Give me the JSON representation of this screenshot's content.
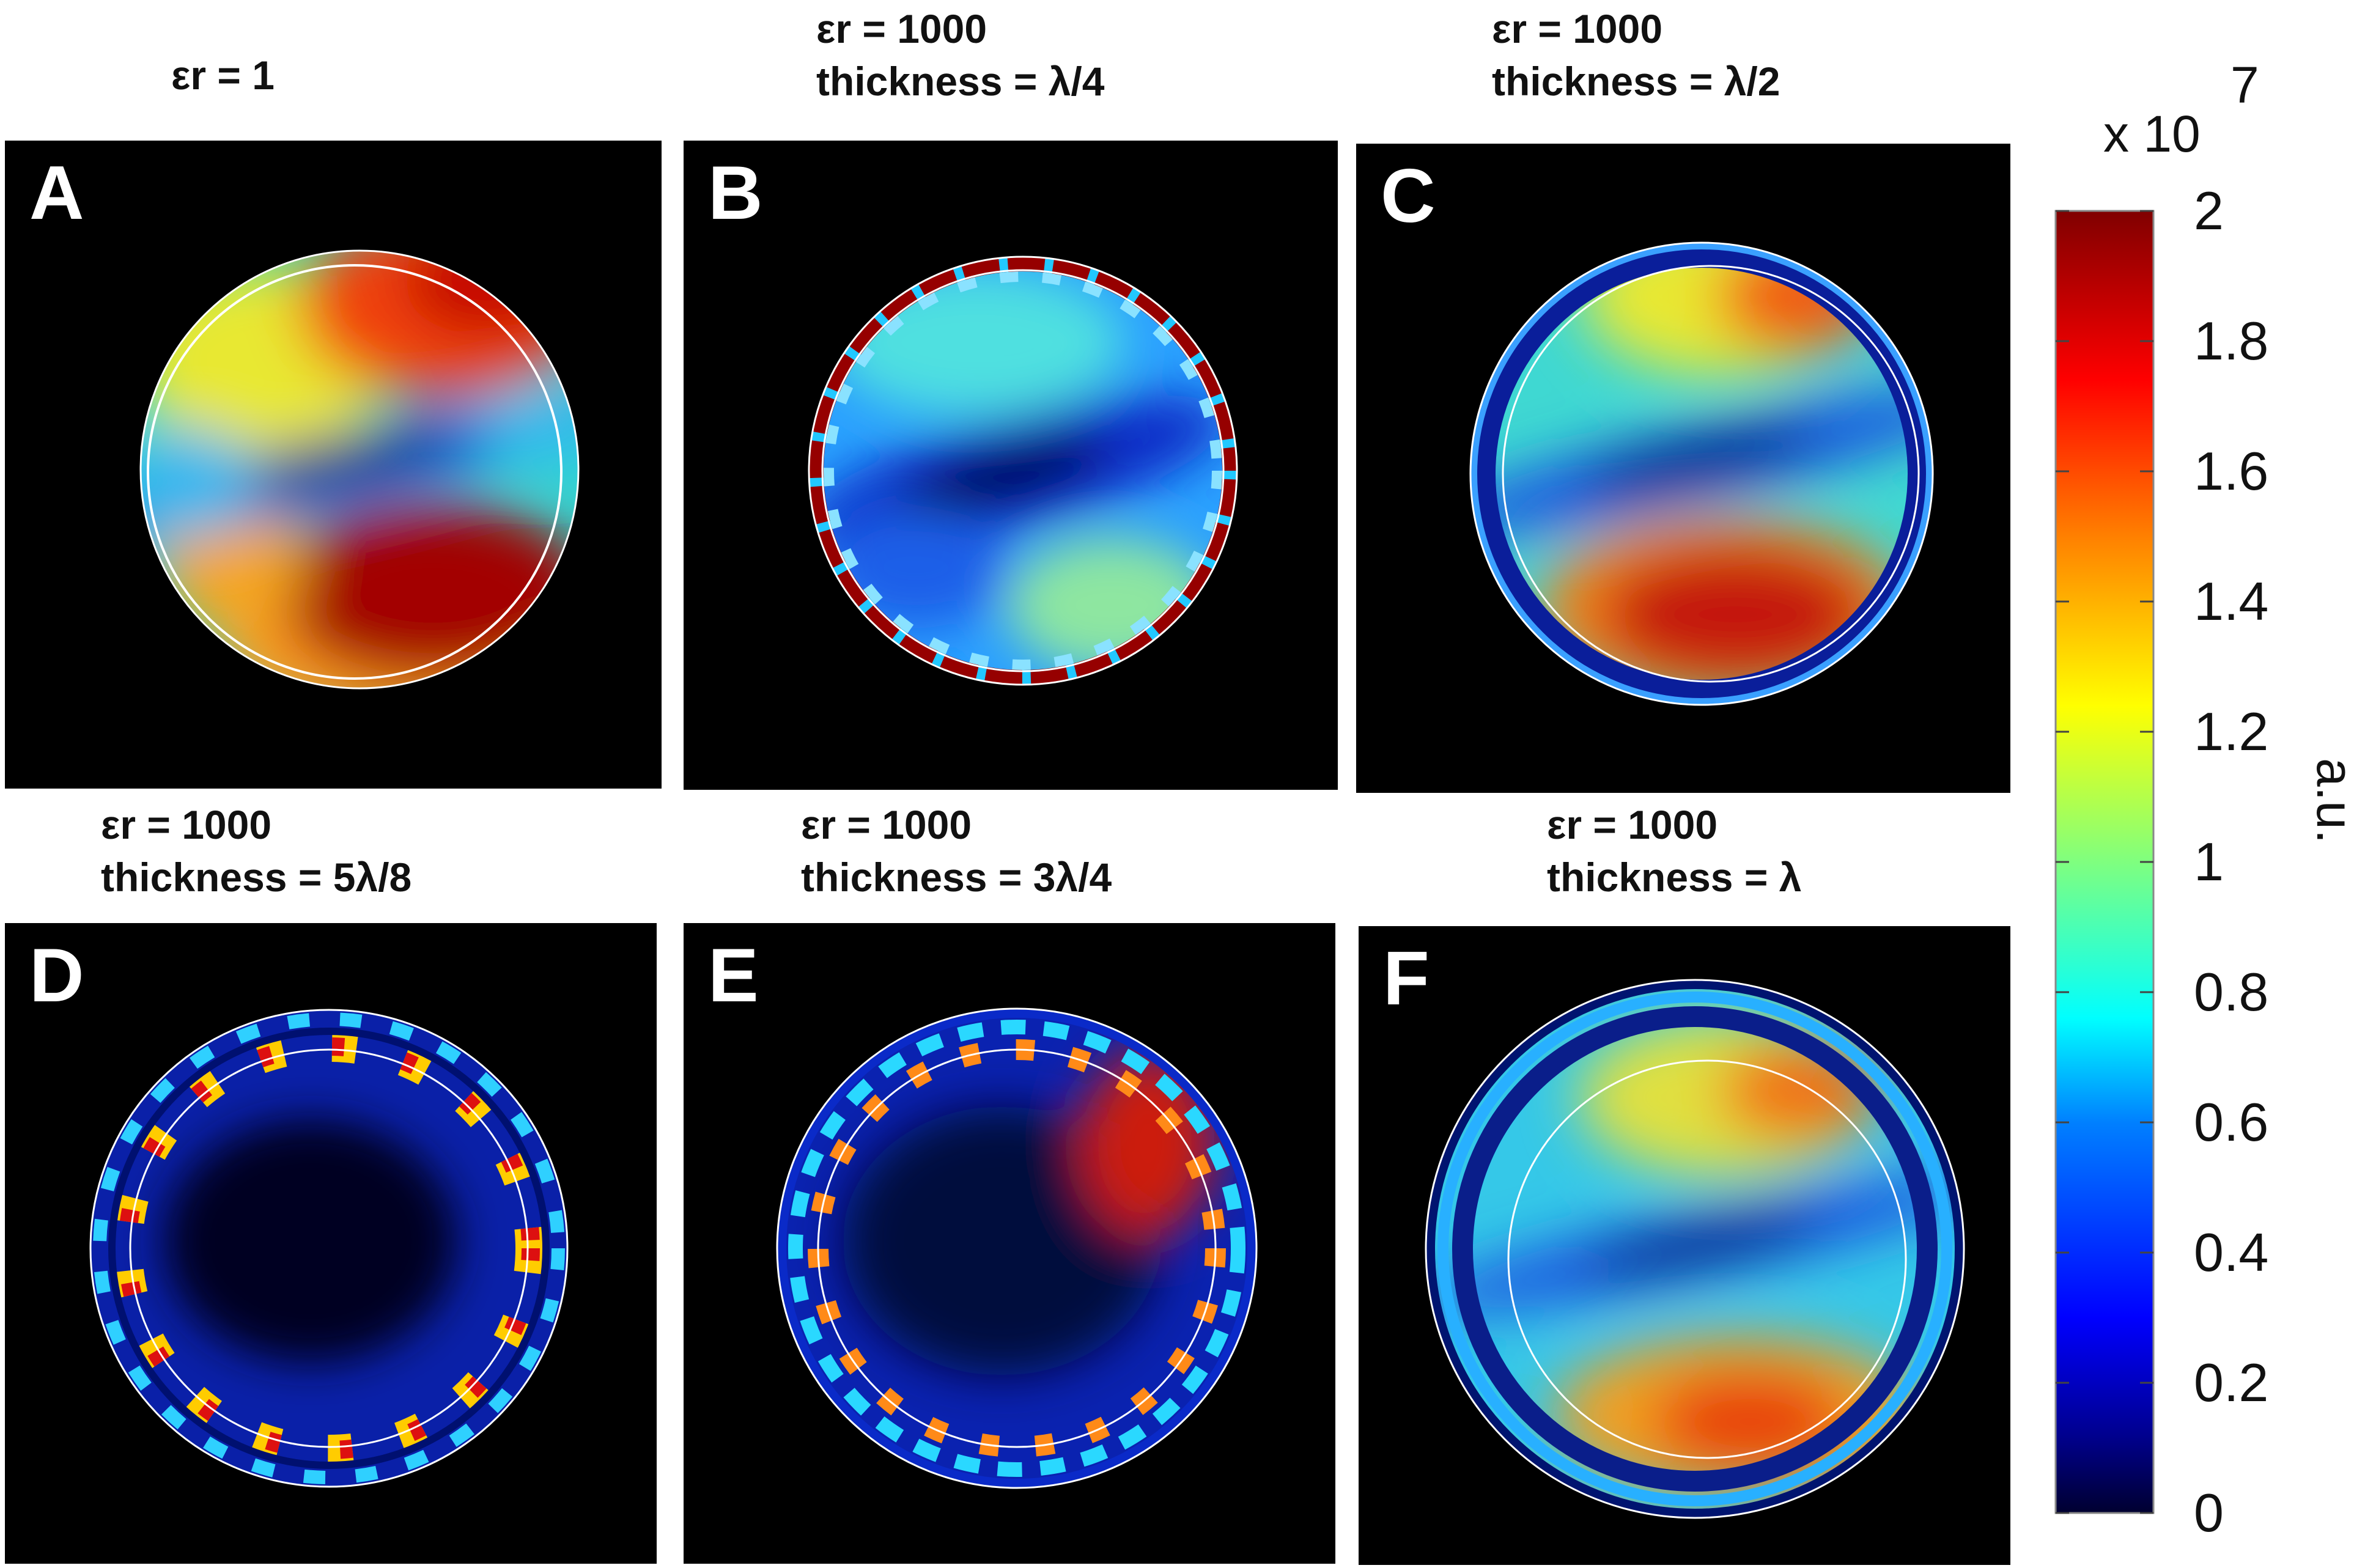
{
  "panels": [
    {
      "label": "A",
      "caption_lines": [
        "εr = 1"
      ],
      "er": 1,
      "thickness": ""
    },
    {
      "label": "B",
      "caption_lines": [
        "εr = 1000",
        "thickness = λ/4"
      ],
      "er": 1000,
      "thickness": "λ/4"
    },
    {
      "label": "C",
      "caption_lines": [
        "εr = 1000",
        "thickness = λ/2"
      ],
      "er": 1000,
      "thickness": "λ/2"
    },
    {
      "label": "D",
      "caption_lines": [
        "εr = 1000",
        "thickness = 5λ/8"
      ],
      "er": 1000,
      "thickness": "5λ/8"
    },
    {
      "label": "E",
      "caption_lines": [
        "εr = 1000",
        "thickness = 3λ/4"
      ],
      "er": 1000,
      "thickness": "3λ/4"
    },
    {
      "label": "F",
      "caption_lines": [
        "εr = 1000",
        "thickness = λ"
      ],
      "er": 1000,
      "thickness": "λ"
    }
  ],
  "colorbar": {
    "multiplier_base": "x 10",
    "multiplier_exp": "7",
    "unit_label": "a.u.",
    "ticks": [
      "0",
      "0.2",
      "0.4",
      "0.6",
      "0.8",
      "1",
      "1.2",
      "1.4",
      "1.6",
      "1.8",
      "2"
    ],
    "range": [
      0,
      2
    ],
    "colormap": "jet"
  },
  "chart_data": {
    "type": "heatmap",
    "title": "",
    "colormap": "jet",
    "value_range": [
      0,
      20000000.0
    ],
    "colorbar_label": "a.u.",
    "colorbar_ticks": [
      0,
      0.2,
      0.4,
      0.6,
      0.8,
      1,
      1.2,
      1.4,
      1.6,
      1.8,
      2
    ],
    "colorbar_multiplier": "x 10^7",
    "subplots": [
      {
        "label": "A",
        "er": 1,
        "thickness": null
      },
      {
        "label": "B",
        "er": 1000,
        "thickness": "λ/4"
      },
      {
        "label": "C",
        "er": 1000,
        "thickness": "λ/2"
      },
      {
        "label": "D",
        "er": 1000,
        "thickness": "5λ/8"
      },
      {
        "label": "E",
        "er": 1000,
        "thickness": "3λ/4"
      },
      {
        "label": "F",
        "er": 1000,
        "thickness": "λ"
      }
    ]
  }
}
